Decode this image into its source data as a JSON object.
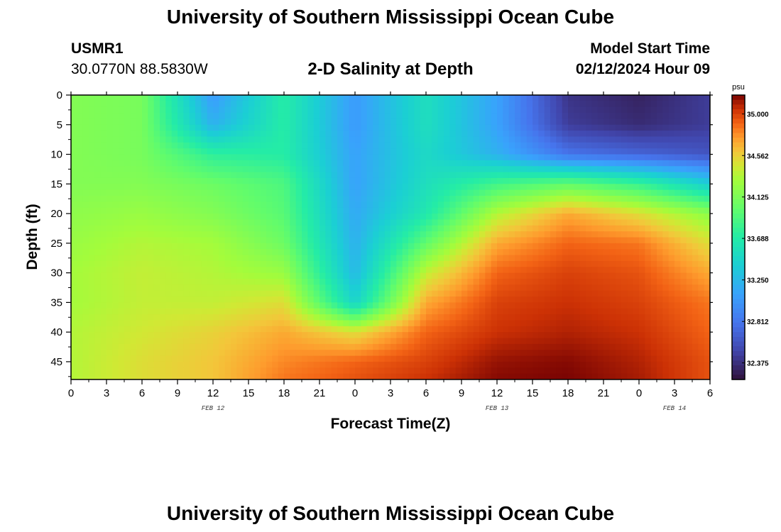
{
  "header": {
    "title": "University of Southern Mississippi Ocean Cube",
    "station_id": "USMR1",
    "station_coords": "30.0770N  88.5830W",
    "plot_title": "2-D Salinity at Depth",
    "model_label": "Model Start Time",
    "model_time": "02/12/2024 Hour 09"
  },
  "footer": {
    "title": "University of Southern Mississippi Ocean Cube"
  },
  "chart_data": {
    "type": "heatmap",
    "title": "2-D Salinity at Depth",
    "xlabel": "Forecast Time(Z)",
    "ylabel": "Depth (ft)",
    "x_tick_labels": [
      "0",
      "3",
      "6",
      "9",
      "12",
      "15",
      "18",
      "21",
      "0",
      "3",
      "6",
      "9",
      "12",
      "15",
      "18",
      "21",
      "0",
      "3",
      "6"
    ],
    "x_range_hours": [
      0,
      54
    ],
    "date_labels": [
      {
        "text": "FEB 12",
        "hour": 12
      },
      {
        "text": "FEB 13",
        "hour": 36
      },
      {
        "text": "FEB 14",
        "hour": 51
      }
    ],
    "y_ticks": [
      0,
      5,
      10,
      15,
      20,
      25,
      30,
      35,
      40,
      45
    ],
    "ylim": [
      0,
      48
    ],
    "colorbar": {
      "unit": "psu",
      "ticks": [
        "35.000",
        "34.562",
        "34.125",
        "33.688",
        "33.250",
        "32.812",
        "32.375"
      ],
      "range": [
        32.2,
        35.2
      ]
    },
    "grid_hours": [
      0,
      6,
      12,
      18,
      24,
      30,
      36,
      42,
      48,
      54
    ],
    "grid_depths": [
      0,
      5,
      10,
      15,
      20,
      25,
      30,
      35,
      40,
      45,
      48
    ],
    "values": [
      [
        34.15,
        34.1,
        33.05,
        33.7,
        33.05,
        33.55,
        33.1,
        32.4,
        32.3,
        32.45
      ],
      [
        34.15,
        34.1,
        33.2,
        33.7,
        33.05,
        33.55,
        33.1,
        32.45,
        32.35,
        32.45
      ],
      [
        34.15,
        34.1,
        33.75,
        33.7,
        33.1,
        33.5,
        33.2,
        32.8,
        32.7,
        32.6
      ],
      [
        34.15,
        34.15,
        34.05,
        33.9,
        33.1,
        33.55,
        33.85,
        34.0,
        33.8,
        33.4
      ],
      [
        34.2,
        34.25,
        34.15,
        33.95,
        33.15,
        33.65,
        34.35,
        34.7,
        34.5,
        34.2
      ],
      [
        34.25,
        34.35,
        34.3,
        34.05,
        33.2,
        34.0,
        34.7,
        34.9,
        34.85,
        34.5
      ],
      [
        34.3,
        34.4,
        34.35,
        34.25,
        33.25,
        34.4,
        34.9,
        35.0,
        34.95,
        34.7
      ],
      [
        34.3,
        34.4,
        34.4,
        34.5,
        33.45,
        34.7,
        35.0,
        35.05,
        35.0,
        34.85
      ],
      [
        34.35,
        34.45,
        34.55,
        34.7,
        34.5,
        34.9,
        35.05,
        35.1,
        35.05,
        34.9
      ],
      [
        34.35,
        34.5,
        34.6,
        34.8,
        34.9,
        35.0,
        35.15,
        35.18,
        35.1,
        34.95
      ],
      [
        34.35,
        34.5,
        34.6,
        34.85,
        34.95,
        35.05,
        35.18,
        35.2,
        35.12,
        34.95
      ]
    ]
  }
}
